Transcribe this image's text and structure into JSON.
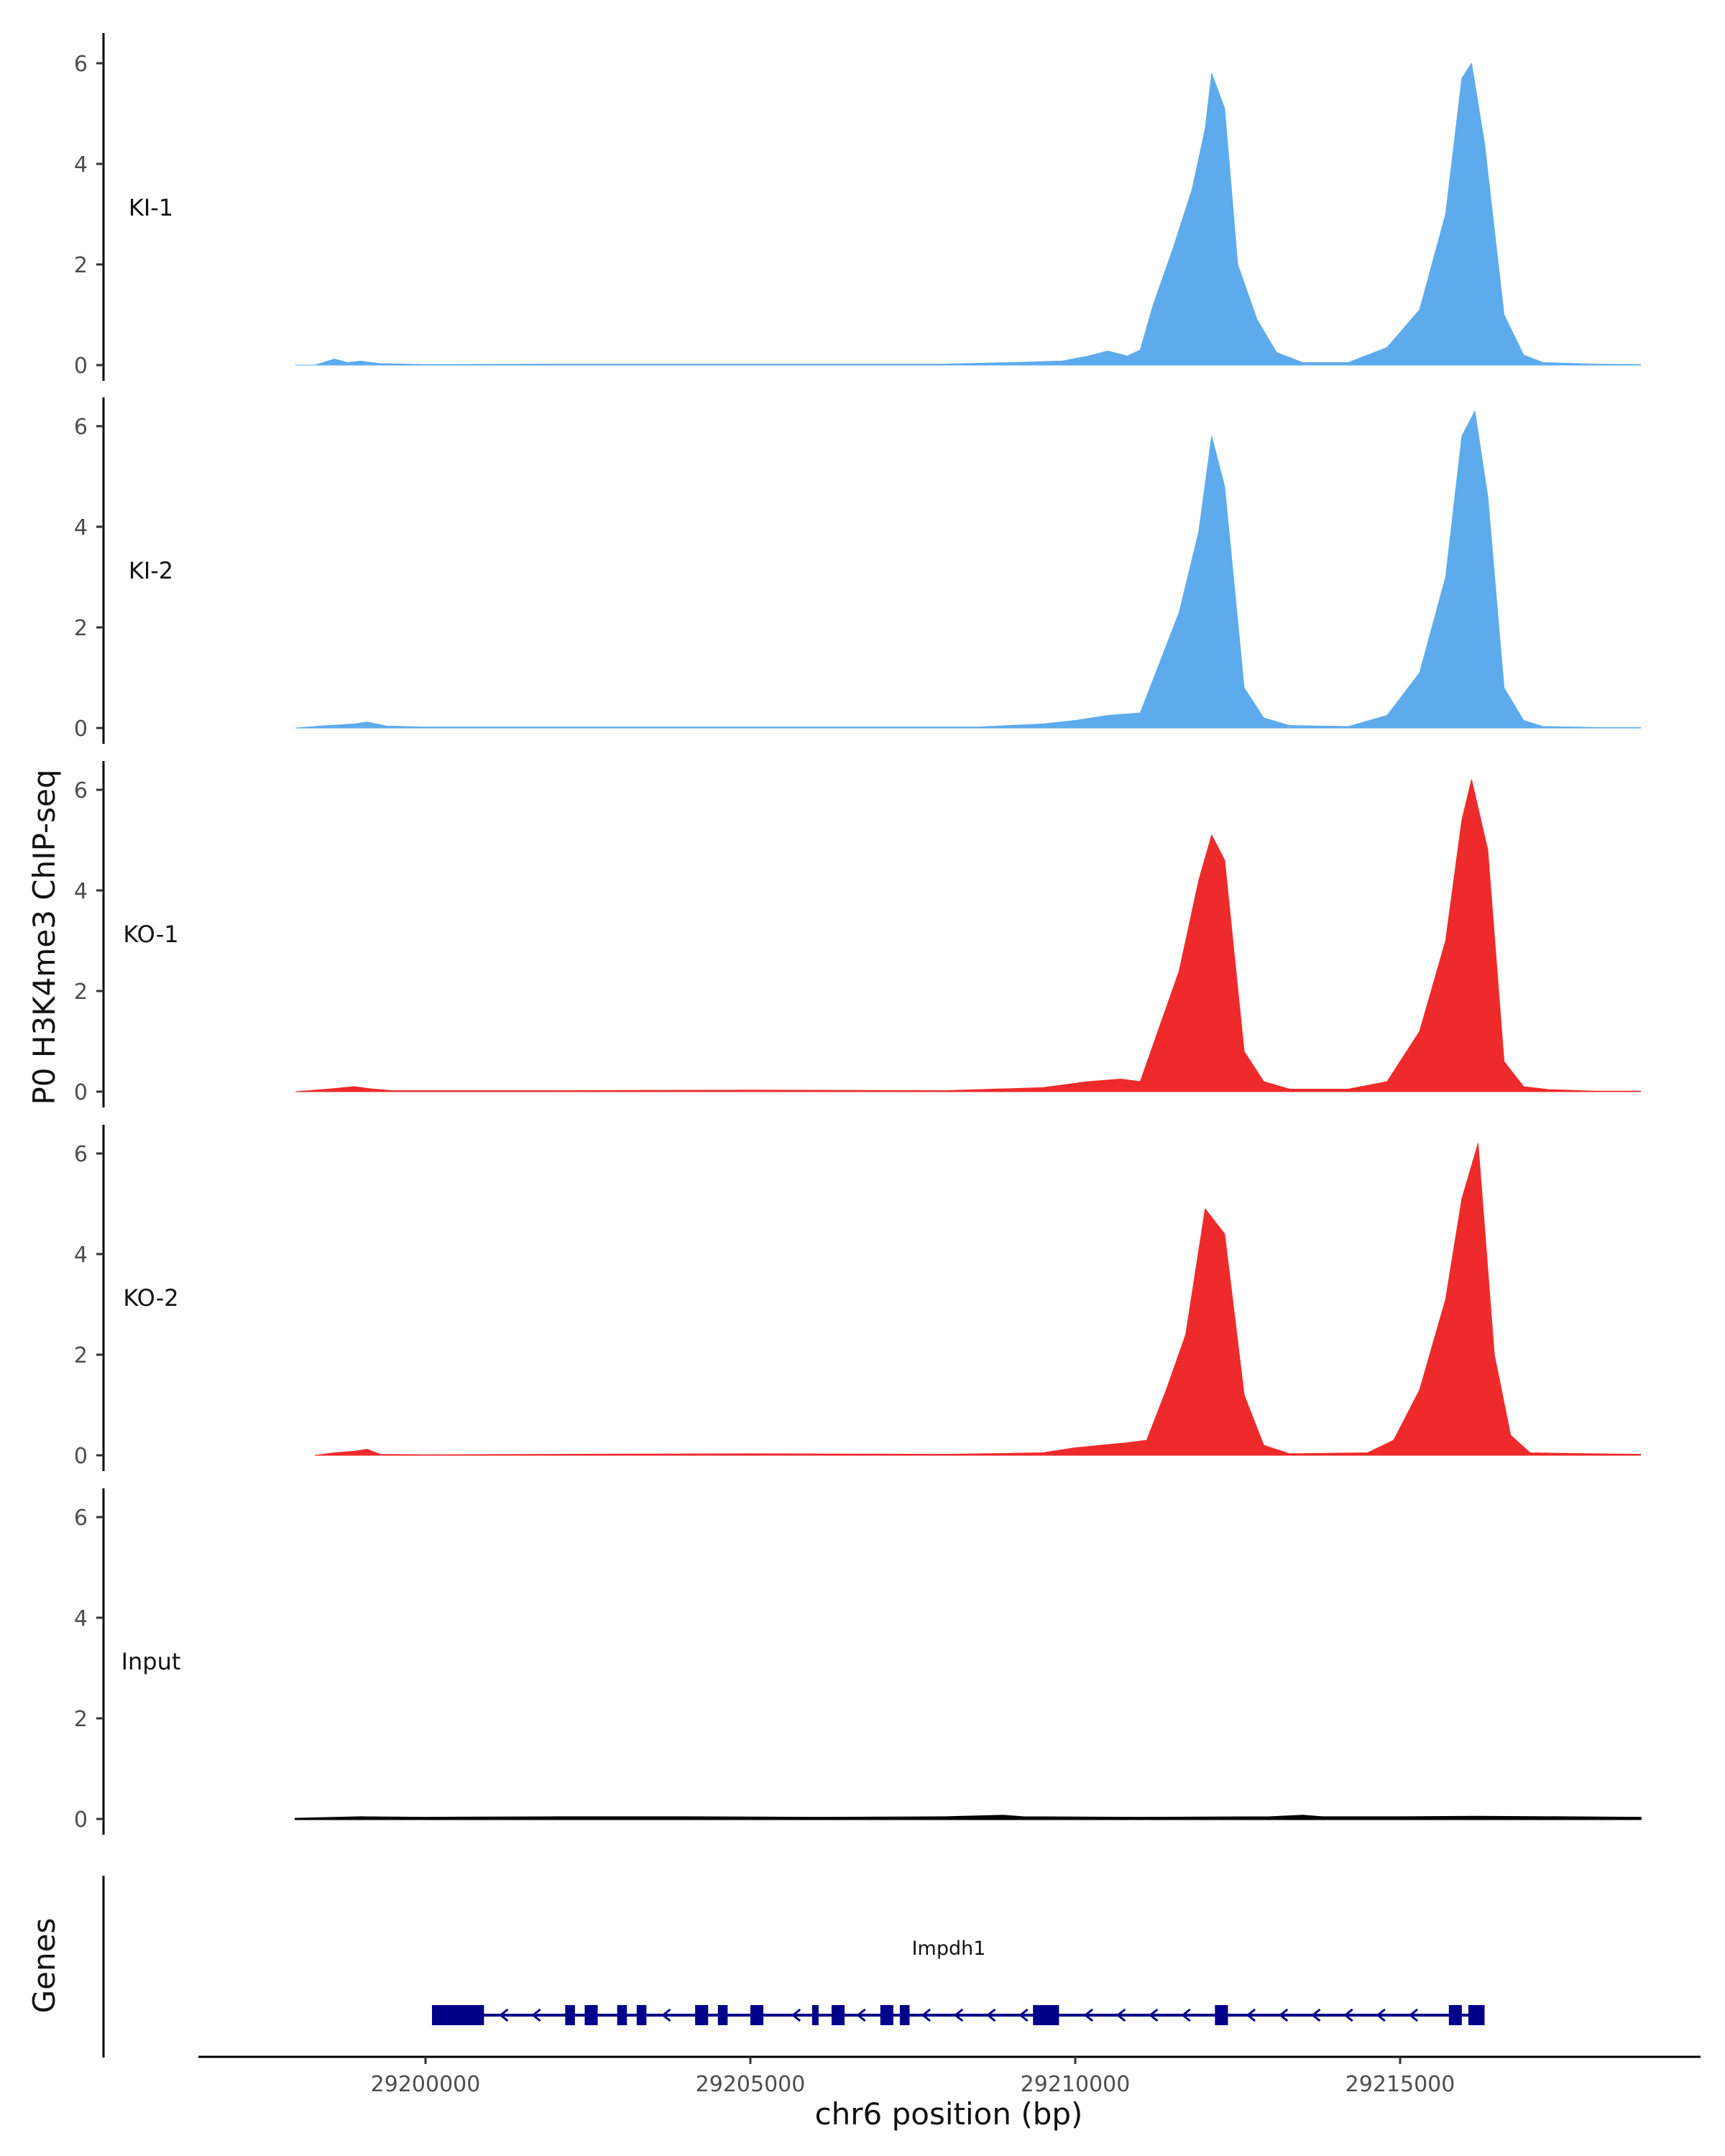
{
  "chart_data": {
    "type": "area",
    "title": "",
    "ylabel": "P0 H3K4me3 ChIP-seq",
    "xlabel": "chr6 position (bp)",
    "xlim": [
      29197000,
      29219000
    ],
    "ylim": [
      0,
      6.5
    ],
    "yticks": [
      0,
      2,
      4,
      6
    ],
    "xticks": [
      29200000,
      29205000,
      29210000,
      29215000
    ],
    "xtick_labels": [
      "29200000",
      "29205000",
      "29210000",
      "29215000"
    ],
    "colors": {
      "KI": "#5DABEC",
      "KO": "#EE2A2B",
      "Input": "#000000",
      "gene": "#00008B",
      "axis": "#000000"
    },
    "data_range": [
      29198000,
      29218700
    ],
    "series": [
      {
        "name": "KI-1",
        "color": "#5DABEC",
        "points": [
          [
            29198000,
            0
          ],
          [
            29198300,
            0
          ],
          [
            29198600,
            0.12
          ],
          [
            29198800,
            0.05
          ],
          [
            29199000,
            0.08
          ],
          [
            29199300,
            0.03
          ],
          [
            29200000,
            0.01
          ],
          [
            29202000,
            0.02
          ],
          [
            29205000,
            0.02
          ],
          [
            29208000,
            0.02
          ],
          [
            29209000,
            0.05
          ],
          [
            29209800,
            0.08
          ],
          [
            29210200,
            0.18
          ],
          [
            29210500,
            0.28
          ],
          [
            29210800,
            0.18
          ],
          [
            29211000,
            0.3
          ],
          [
            29211200,
            1.2
          ],
          [
            29211500,
            2.3
          ],
          [
            29211800,
            3.5
          ],
          [
            29212000,
            4.7
          ],
          [
            29212100,
            5.8
          ],
          [
            29212300,
            5.1
          ],
          [
            29212500,
            2.0
          ],
          [
            29212800,
            0.9
          ],
          [
            29213100,
            0.25
          ],
          [
            29213500,
            0.05
          ],
          [
            29214200,
            0.05
          ],
          [
            29214800,
            0.35
          ],
          [
            29215300,
            1.1
          ],
          [
            29215700,
            3.0
          ],
          [
            29215950,
            5.7
          ],
          [
            29216100,
            6.0
          ],
          [
            29216300,
            4.4
          ],
          [
            29216600,
            1.0
          ],
          [
            29216900,
            0.2
          ],
          [
            29217200,
            0.05
          ],
          [
            29218000,
            0.02
          ],
          [
            29218700,
            0.01
          ]
        ]
      },
      {
        "name": "KI-2",
        "color": "#5DABEC",
        "points": [
          [
            29198000,
            0
          ],
          [
            29198500,
            0.05
          ],
          [
            29198900,
            0.08
          ],
          [
            29199100,
            0.12
          ],
          [
            29199400,
            0.04
          ],
          [
            29200000,
            0.02
          ],
          [
            29202000,
            0.02
          ],
          [
            29205000,
            0.02
          ],
          [
            29208500,
            0.02
          ],
          [
            29209500,
            0.08
          ],
          [
            29210000,
            0.15
          ],
          [
            29210500,
            0.25
          ],
          [
            29211000,
            0.3
          ],
          [
            29211300,
            1.3
          ],
          [
            29211600,
            2.3
          ],
          [
            29211900,
            3.9
          ],
          [
            29212100,
            5.8
          ],
          [
            29212300,
            4.8
          ],
          [
            29212600,
            0.8
          ],
          [
            29212900,
            0.2
          ],
          [
            29213300,
            0.05
          ],
          [
            29214200,
            0.03
          ],
          [
            29214800,
            0.25
          ],
          [
            29215300,
            1.1
          ],
          [
            29215700,
            3.0
          ],
          [
            29215950,
            5.8
          ],
          [
            29216150,
            6.3
          ],
          [
            29216350,
            4.6
          ],
          [
            29216600,
            0.8
          ],
          [
            29216900,
            0.15
          ],
          [
            29217200,
            0.03
          ],
          [
            29218000,
            0.01
          ],
          [
            29218700,
            0.01
          ]
        ]
      },
      {
        "name": "KO-1",
        "color": "#EE2A2B",
        "points": [
          [
            29198000,
            0
          ],
          [
            29198500,
            0.05
          ],
          [
            29198900,
            0.1
          ],
          [
            29199200,
            0.05
          ],
          [
            29199500,
            0.02
          ],
          [
            29202000,
            0.02
          ],
          [
            29205000,
            0.03
          ],
          [
            29208000,
            0.02
          ],
          [
            29209500,
            0.08
          ],
          [
            29210200,
            0.2
          ],
          [
            29210700,
            0.25
          ],
          [
            29211000,
            0.2
          ],
          [
            29211300,
            1.3
          ],
          [
            29211600,
            2.4
          ],
          [
            29211900,
            4.2
          ],
          [
            29212100,
            5.1
          ],
          [
            29212300,
            4.6
          ],
          [
            29212600,
            0.8
          ],
          [
            29212900,
            0.2
          ],
          [
            29213300,
            0.05
          ],
          [
            29214200,
            0.05
          ],
          [
            29214800,
            0.2
          ],
          [
            29215300,
            1.2
          ],
          [
            29215700,
            3.0
          ],
          [
            29215950,
            5.4
          ],
          [
            29216100,
            6.2
          ],
          [
            29216350,
            4.8
          ],
          [
            29216600,
            0.6
          ],
          [
            29216900,
            0.1
          ],
          [
            29217300,
            0.04
          ],
          [
            29218000,
            0.01
          ],
          [
            29218700,
            0.01
          ]
        ]
      },
      {
        "name": "KO-2",
        "color": "#EE2A2B",
        "points": [
          [
            29198300,
            0
          ],
          [
            29198600,
            0.05
          ],
          [
            29198900,
            0.08
          ],
          [
            29199100,
            0.12
          ],
          [
            29199300,
            0.02
          ],
          [
            29200000,
            0.01
          ],
          [
            29202000,
            0.02
          ],
          [
            29205000,
            0.03
          ],
          [
            29208000,
            0.02
          ],
          [
            29209500,
            0.05
          ],
          [
            29210000,
            0.15
          ],
          [
            29210800,
            0.25
          ],
          [
            29211100,
            0.3
          ],
          [
            29211400,
            1.3
          ],
          [
            29211700,
            2.4
          ],
          [
            29212000,
            4.9
          ],
          [
            29212300,
            4.4
          ],
          [
            29212600,
            1.2
          ],
          [
            29212900,
            0.2
          ],
          [
            29213300,
            0.03
          ],
          [
            29214500,
            0.05
          ],
          [
            29214900,
            0.3
          ],
          [
            29215300,
            1.3
          ],
          [
            29215700,
            3.1
          ],
          [
            29215950,
            5.1
          ],
          [
            29216200,
            6.2
          ],
          [
            29216450,
            2.0
          ],
          [
            29216700,
            0.4
          ],
          [
            29217000,
            0.05
          ],
          [
            29218000,
            0.03
          ],
          [
            29218700,
            0.02
          ]
        ]
      },
      {
        "name": "Input",
        "color": "#000000",
        "points": [
          [
            29198000,
            0
          ],
          [
            29199000,
            0.03
          ],
          [
            29200000,
            0.02
          ],
          [
            29202000,
            0.03
          ],
          [
            29204000,
            0.03
          ],
          [
            29206000,
            0.02
          ],
          [
            29208000,
            0.03
          ],
          [
            29208900,
            0.06
          ],
          [
            29209200,
            0.03
          ],
          [
            29211000,
            0.02
          ],
          [
            29213000,
            0.03
          ],
          [
            29213500,
            0.06
          ],
          [
            29213800,
            0.03
          ],
          [
            29215000,
            0.03
          ],
          [
            29216200,
            0.04
          ],
          [
            29217500,
            0.03
          ],
          [
            29218700,
            0.02
          ]
        ]
      }
    ],
    "genes_track": {
      "label": "Genes",
      "gene_name": "Impdh1",
      "strand": "-",
      "span": [
        29200100,
        29216300
      ],
      "exons": [
        [
          29200100,
          29200900
        ],
        [
          29202150,
          29202300
        ],
        [
          29202450,
          29202650
        ],
        [
          29202950,
          29203100
        ],
        [
          29203250,
          29203400
        ],
        [
          29204150,
          29204350
        ],
        [
          29204500,
          29204650
        ],
        [
          29205000,
          29205200
        ],
        [
          29205950,
          29206050
        ],
        [
          29206250,
          29206450
        ],
        [
          29207000,
          29207200
        ],
        [
          29207300,
          29207450
        ],
        [
          29209350,
          29209750
        ],
        [
          29212150,
          29212350
        ],
        [
          29215750,
          29215950
        ],
        [
          29216050,
          29216300
        ]
      ]
    }
  }
}
